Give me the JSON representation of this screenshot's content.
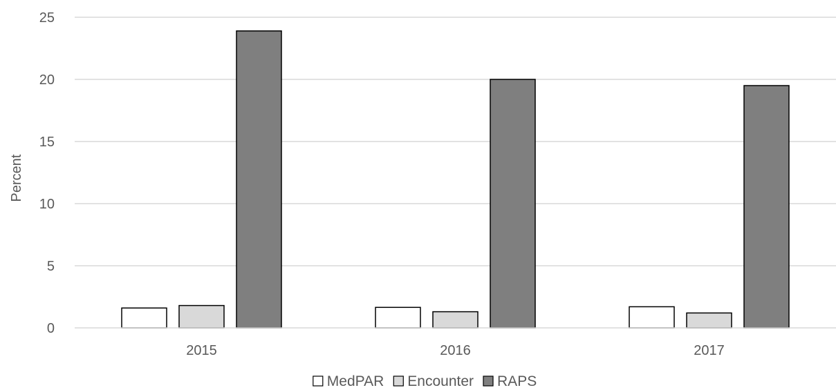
{
  "chart_data": {
    "type": "bar",
    "title": "",
    "xlabel": "",
    "ylabel": "Percent",
    "categories": [
      "2015",
      "2016",
      "2017"
    ],
    "ylim": [
      0,
      25
    ],
    "yticks": [
      "0",
      "5",
      "10",
      "15",
      "20",
      "25"
    ],
    "grid": true,
    "legend_position": "bottom",
    "series": [
      {
        "name": "MedPAR",
        "color": "#ffffff",
        "values": [
          1.6,
          1.65,
          1.7
        ]
      },
      {
        "name": "Encounter",
        "color": "#d9d9d9",
        "values": [
          1.8,
          1.3,
          1.2
        ]
      },
      {
        "name": "RAPS",
        "color": "#7f7f7f",
        "values": [
          23.9,
          20.0,
          19.5
        ]
      }
    ]
  }
}
